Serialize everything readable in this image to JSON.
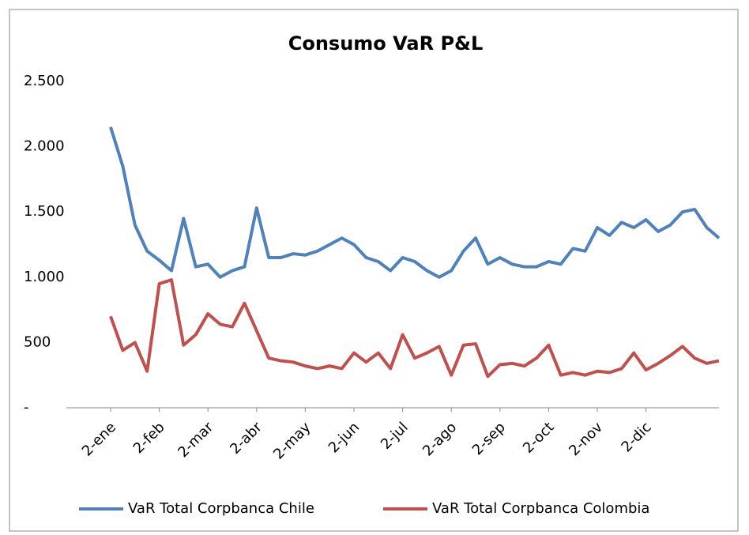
{
  "chart_data": {
    "type": "line",
    "title": "Consumo VaR P&L",
    "categories": [
      "2-ene",
      null,
      null,
      null,
      "2-feb",
      null,
      null,
      null,
      "2-mar",
      null,
      null,
      null,
      "2-abr",
      null,
      null,
      null,
      "2-may",
      null,
      null,
      null,
      "2-jun",
      null,
      null,
      null,
      "2-jul",
      null,
      null,
      null,
      "2-ago",
      null,
      null,
      null,
      "2-sep",
      null,
      null,
      null,
      "2-oct",
      null,
      null,
      null,
      "2-nov",
      null,
      null,
      null,
      "2-dic",
      null,
      null,
      null,
      null,
      null,
      null
    ],
    "series": [
      {
        "name": "VaR Total Corpbanca Chile",
        "color": "#4f81bd",
        "values": [
          2150,
          1850,
          1400,
          1200,
          1130,
          1050,
          1450,
          1080,
          1100,
          1000,
          1050,
          1080,
          1530,
          1150,
          1150,
          1180,
          1170,
          1200,
          1250,
          1300,
          1250,
          1150,
          1120,
          1050,
          1150,
          1120,
          1050,
          1000,
          1050,
          1200,
          1300,
          1100,
          1150,
          1100,
          1080,
          1080,
          1120,
          1100,
          1220,
          1200,
          1380,
          1320,
          1420,
          1380,
          1440,
          1350,
          1400,
          1500,
          1520,
          1380,
          1300
        ]
      },
      {
        "name": "VaR Total Corpbanca Colombia",
        "color": "#c0504d",
        "values": [
          700,
          440,
          500,
          280,
          950,
          980,
          480,
          560,
          720,
          640,
          620,
          800,
          590,
          380,
          360,
          350,
          320,
          300,
          320,
          300,
          420,
          350,
          420,
          300,
          560,
          380,
          420,
          470,
          250,
          480,
          490,
          240,
          330,
          340,
          320,
          380,
          480,
          250,
          270,
          250,
          280,
          270,
          300,
          420,
          290,
          340,
          400,
          470,
          380,
          340,
          360
        ]
      }
    ],
    "ylim": [
      0,
      2500
    ],
    "yticks": [
      {
        "value": 0,
        "label": "-"
      },
      500,
      {
        "value": 1000,
        "label": "1.000"
      },
      {
        "value": 1500,
        "label": "1.500"
      },
      {
        "value": 2000,
        "label": "2.000"
      },
      {
        "value": 2500,
        "label": "2.500"
      }
    ],
    "grid": false
  }
}
